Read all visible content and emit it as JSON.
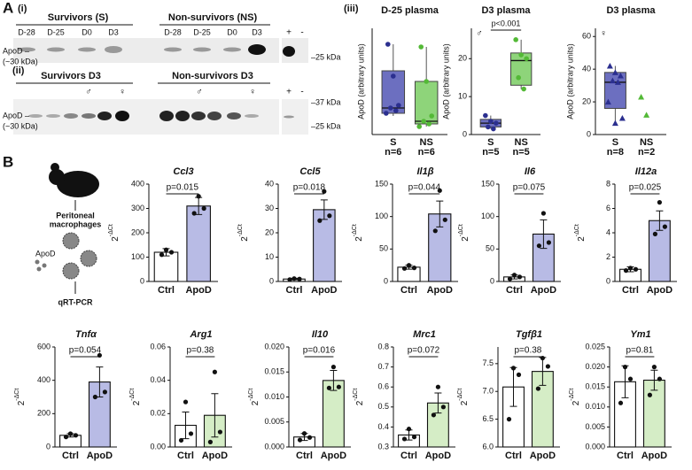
{
  "panel_labels": [
    "A",
    "B"
  ],
  "blot": {
    "i": {
      "label": "(i)",
      "groups": [
        "Survivors (S)",
        "Non-survivors (NS)"
      ],
      "days": [
        "D-28",
        "D-25",
        "D0",
        "D3",
        "D-28",
        "D-25",
        "D0",
        "D3"
      ],
      "controls": [
        "+",
        "-"
      ],
      "protein": "ApoD –",
      "size": "(~30 kDa)",
      "markers": [
        "–25 kDa"
      ]
    },
    "ii": {
      "label": "(ii)",
      "groups": [
        "Survivors D3",
        "Non-survivors D3"
      ],
      "sexes": [
        "♂",
        "♀",
        "♂",
        "♀"
      ],
      "controls": [
        "+",
        "-"
      ],
      "protein": "ApoD –",
      "size": "(~30 kDa)",
      "markers": [
        "–37 kDa",
        "–25 kDa"
      ]
    },
    "iii": {
      "label": "(iii)"
    }
  },
  "schematic": {
    "cells": [
      "Peritoneal",
      "macrophages"
    ],
    "treatment": "ApoD",
    "assay": "qRT-PCR"
  },
  "chart_data": [
    {
      "type": "box",
      "title": "D-25 plasma",
      "y_label": "ApoD (arbitrary units)",
      "categories": [
        "S",
        "NS"
      ],
      "category_notes": [
        "n=6",
        "n=6"
      ],
      "colors": [
        "#6c6fc0",
        "#8ed47a"
      ],
      "point_colors": [
        "#2b2f8f",
        "#53b936"
      ],
      "marker": "circle",
      "ylim": [
        0,
        40
      ],
      "yticks": [],
      "whisker_low": [
        7,
        3
      ],
      "q1": [
        8,
        4
      ],
      "median": [
        10,
        5
      ],
      "q3": [
        24,
        20
      ],
      "whisker_high": [
        34,
        33
      ],
      "points": [
        [
          34,
          22,
          11,
          10,
          9,
          8
        ],
        [
          33,
          20,
          7,
          5,
          4,
          3
        ]
      ]
    },
    {
      "type": "box",
      "title": "D3 plasma",
      "symbol": "♂",
      "annotation": "p<0.001",
      "y_label": "ApoD (arbitrary units)",
      "categories": [
        "S",
        "NS"
      ],
      "category_notes": [
        "n=5",
        "n=5"
      ],
      "colors": [
        "#6c6fc0",
        "#8ed47a"
      ],
      "point_colors": [
        "#2b2f8f",
        "#53b936"
      ],
      "marker": "circle",
      "ylim": [
        0,
        28
      ],
      "yticks": [
        0,
        10,
        20
      ],
      "whisker_low": [
        1.5,
        12
      ],
      "q1": [
        2,
        13
      ],
      "median": [
        3,
        19.5
      ],
      "q3": [
        4,
        21.5
      ],
      "whisker_high": [
        5,
        25
      ],
      "points": [
        [
          5,
          3.5,
          3,
          2,
          1.5
        ],
        [
          25,
          21,
          20,
          15,
          12
        ]
      ]
    },
    {
      "type": "box",
      "title": "D3 plasma",
      "symbol": "♀",
      "y_label": "ApoD (arbitrary units)",
      "categories": [
        "S",
        "NS"
      ],
      "category_notes": [
        "n=8",
        "n=2"
      ],
      "colors": [
        "#6c6fc0",
        "#8ed47a"
      ],
      "point_colors": [
        "#2b2f8f",
        "#53b936"
      ],
      "marker": "triangle",
      "ylim": [
        0,
        65
      ],
      "yticks": [
        0,
        20,
        40,
        60
      ],
      "whisker_low": [
        7,
        null
      ],
      "q1": [
        16,
        null
      ],
      "median": [
        32,
        null
      ],
      "q3": [
        38,
        null
      ],
      "whisker_high": [
        42,
        null
      ],
      "points": [
        [
          42,
          38,
          36,
          33,
          32,
          20,
          10,
          7
        ],
        [
          23,
          12
        ]
      ]
    },
    {
      "type": "bar",
      "title": "Ccl3",
      "y_label": "2",
      "y_label_sup": "-ΔCt",
      "categories": [
        "Ctrl",
        "ApoD"
      ],
      "colors": [
        "#ffffff",
        "#b8bbe5"
      ],
      "values": [
        120,
        310
      ],
      "errors": [
        15,
        35
      ],
      "points": [
        [
          130,
          120,
          110
        ],
        [
          350,
          300,
          280
        ]
      ],
      "annotation": "p=0.015",
      "ylim": [
        0,
        400
      ],
      "yticks": [
        0,
        100,
        200,
        300,
        400
      ]
    },
    {
      "type": "bar",
      "title": "Ccl5",
      "y_label": "2",
      "y_label_sup": "-ΔCt",
      "categories": [
        "Ctrl",
        "ApoD"
      ],
      "colors": [
        "#ffffff",
        "#b8bbe5"
      ],
      "values": [
        1,
        29.5
      ],
      "errors": [
        0.3,
        4
      ],
      "points": [
        [
          1.2,
          1,
          0.8
        ],
        [
          37,
          27,
          25
        ]
      ],
      "annotation": "p=0.018",
      "ylim": [
        0,
        40
      ],
      "yticks": [
        0,
        10,
        20,
        30,
        40
      ]
    },
    {
      "type": "bar",
      "title": "Il1β",
      "y_label": "2",
      "y_label_sup": "-ΔCt",
      "categories": [
        "Ctrl",
        "ApoD"
      ],
      "colors": [
        "#ffffff",
        "#b8bbe5"
      ],
      "values": [
        22,
        104
      ],
      "errors": [
        3,
        20
      ],
      "points": [
        [
          25,
          21,
          20
        ],
        [
          140,
          95,
          78
        ]
      ],
      "annotation": "p=0.044",
      "ylim": [
        0,
        150
      ],
      "yticks": [
        0,
        50,
        100,
        150
      ]
    },
    {
      "type": "bar",
      "title": "Il6",
      "y_label": "2",
      "y_label_sup": "-ΔCt",
      "categories": [
        "Ctrl",
        "ApoD"
      ],
      "colors": [
        "#ffffff",
        "#b8bbe5"
      ],
      "values": [
        7,
        73
      ],
      "errors": [
        3,
        22
      ],
      "points": [
        [
          10,
          7,
          4
        ],
        [
          105,
          60,
          55
        ]
      ],
      "annotation": "p=0.075",
      "ylim": [
        0,
        150
      ],
      "yticks": [
        0,
        50,
        100,
        150
      ]
    },
    {
      "type": "bar",
      "title": "Il12a",
      "y_label": "2",
      "y_label_sup": "-ΔCt",
      "categories": [
        "Ctrl",
        "ApoD"
      ],
      "colors": [
        "#ffffff",
        "#b8bbe5"
      ],
      "values": [
        1,
        5
      ],
      "errors": [
        0.2,
        0.8
      ],
      "points": [
        [
          1.1,
          1,
          0.9
        ],
        [
          6.5,
          4.5,
          3.9
        ]
      ],
      "annotation": "p=0.025",
      "ylim": [
        0,
        8
      ],
      "yticks": [
        0,
        2,
        4,
        6,
        8
      ]
    },
    {
      "type": "bar",
      "title": "Tnfα",
      "y_label": "2",
      "y_label_sup": "-ΔCt",
      "categories": [
        "Ctrl",
        "ApoD"
      ],
      "colors": [
        "#ffffff",
        "#b8bbe5"
      ],
      "values": [
        70,
        390
      ],
      "errors": [
        10,
        90
      ],
      "points": [
        [
          80,
          70,
          60
        ],
        [
          550,
          330,
          300
        ]
      ],
      "annotation": "p=0.054",
      "ylim": [
        0,
        600
      ],
      "yticks": [
        0,
        200,
        400,
        600
      ]
    },
    {
      "type": "bar",
      "title": "Arg1",
      "y_label": "2",
      "y_label_sup": "-ΔCt",
      "categories": [
        "Ctrl",
        "ApoD"
      ],
      "colors": [
        "#ffffff",
        "#d5edc6"
      ],
      "values": [
        0.013,
        0.019
      ],
      "errors": [
        0.008,
        0.013
      ],
      "points": [
        [
          0.027,
          0.008,
          0.004
        ],
        [
          0.045,
          0.009,
          0.003
        ]
      ],
      "annotation": "p=0.38",
      "ylim": [
        0,
        0.06
      ],
      "yticks": [
        {
          "value": 0,
          "label": "0.00"
        },
        0.02,
        0.04,
        0.06
      ]
    },
    {
      "type": "bar",
      "title": "Il10",
      "y_label": "2",
      "y_label_sup": "-ΔCt",
      "categories": [
        "Ctrl",
        "ApoD"
      ],
      "colors": [
        "#ffffff",
        "#d5edc6"
      ],
      "values": [
        0.002,
        0.0133
      ],
      "errors": [
        0.0007,
        0.002
      ],
      "points": [
        [
          0.0027,
          0.0019,
          0.0014
        ],
        [
          0.016,
          0.012,
          0.0118
        ]
      ],
      "annotation": "p=0.016",
      "ylim": [
        0,
        0.02
      ],
      "yticks": [
        {
          "value": 0,
          "label": "0.000"
        },
        0.005,
        {
          "value": 0.01,
          "label": "0.010"
        },
        0.015,
        {
          "value": 0.02,
          "label": "0.020"
        }
      ]
    },
    {
      "type": "bar",
      "title": "Mrc1",
      "y_label": "2",
      "y_label_sup": "-ΔCt",
      "categories": [
        "Ctrl",
        "ApoD"
      ],
      "colors": [
        "#ffffff",
        "#d5edc6"
      ],
      "values": [
        0.36,
        0.52
      ],
      "errors": [
        0.025,
        0.05
      ],
      "points": [
        [
          0.39,
          0.35,
          0.34
        ],
        [
          0.6,
          0.5,
          0.46
        ]
      ],
      "annotation": "p=0.072",
      "ylim": [
        0.3,
        0.8
      ],
      "yticks": [
        0.3,
        0.4,
        0.5,
        0.6,
        0.7,
        0.8
      ]
    },
    {
      "type": "bar",
      "title": "Tgfβ1",
      "y_label": "2",
      "y_label_sup": "-ΔCt",
      "categories": [
        "Ctrl",
        "ApoD"
      ],
      "colors": [
        "#ffffff",
        "#d5edc6"
      ],
      "values": [
        7.08,
        7.36
      ],
      "errors": [
        0.35,
        0.25
      ],
      "points": [
        [
          7.42,
          7.3,
          6.5
        ],
        [
          7.6,
          7.45,
          7.05
        ]
      ],
      "annotation": "p=0.38",
      "ylim": [
        6.0,
        7.8
      ],
      "yticks": [
        {
          "value": 6.0,
          "label": "6.0"
        },
        6.5,
        {
          "value": 7.0,
          "label": "7.0"
        },
        7.5
      ]
    },
    {
      "type": "bar",
      "title": "Ym1",
      "y_label": "2",
      "y_label_sup": "-ΔCt",
      "categories": [
        "Ctrl",
        "ApoD"
      ],
      "colors": [
        "#ffffff",
        "#d5edc6"
      ],
      "values": [
        0.0163,
        0.0167
      ],
      "errors": [
        0.004,
        0.0025
      ],
      "points": [
        [
          0.02,
          0.017,
          0.011
        ],
        [
          0.02,
          0.017,
          0.013
        ]
      ],
      "annotation": "p=0.81",
      "ylim": [
        0,
        0.025
      ],
      "yticks": [
        {
          "value": 0,
          "label": "0.000"
        },
        0.005,
        {
          "value": 0.01,
          "label": "0.010"
        },
        0.015,
        {
          "value": 0.02,
          "label": "0.020"
        },
        0.025
      ]
    }
  ]
}
